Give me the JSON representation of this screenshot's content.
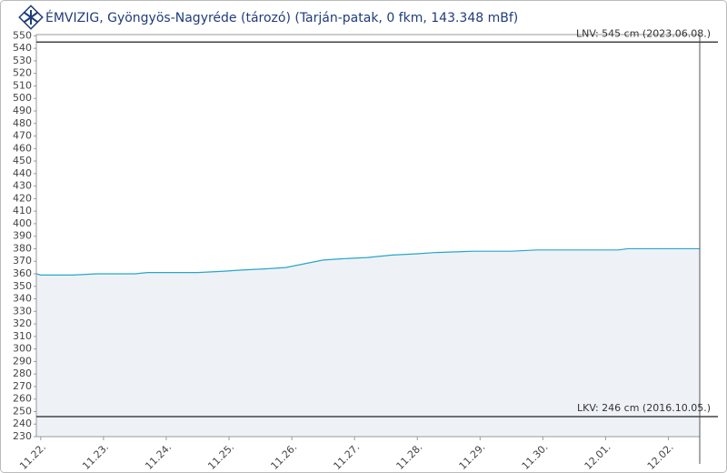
{
  "chart_data": {
    "type": "line",
    "title": "ÉMVIZIG, Gyöngyös-Nagyréde (tározó) (Tarján-patak, 0 fkm, 143.348 mBf)",
    "x": [
      -0.07,
      0,
      0.5,
      0.9,
      1.5,
      1.7,
      2.5,
      2.9,
      3.2,
      3.6,
      3.9,
      4.1,
      4.3,
      4.5,
      4.8,
      5.2,
      5.6,
      6.0,
      6.3,
      6.9,
      7.5,
      7.9,
      8.5,
      9.2,
      9.35,
      10.0,
      10.5
    ],
    "series": [
      {
        "color": "#29a6c9",
        "fill": "#eef2f7",
        "values": [
          360,
          359,
          359,
          360,
          360,
          361,
          361,
          362,
          363,
          364,
          365,
          367,
          369,
          371,
          372,
          373,
          375,
          376,
          377,
          378,
          378,
          379,
          379,
          379,
          380,
          380,
          380
        ]
      }
    ],
    "xlim": [
      -0.07,
      10.5
    ],
    "xticks": [
      {
        "value": 0,
        "label": "11.22."
      },
      {
        "value": 1,
        "label": "11.23."
      },
      {
        "value": 2,
        "label": "11.24."
      },
      {
        "value": 3,
        "label": "11.25."
      },
      {
        "value": 4,
        "label": "11.26."
      },
      {
        "value": 5,
        "label": "11.27."
      },
      {
        "value": 6,
        "label": "11.28."
      },
      {
        "value": 7,
        "label": "11.29."
      },
      {
        "value": 8,
        "label": "11.30."
      },
      {
        "value": 9,
        "label": "12.01."
      },
      {
        "value": 10,
        "label": "12.02."
      }
    ],
    "ylim": [
      230,
      551
    ],
    "yticks": [
      230,
      240,
      250,
      260,
      270,
      280,
      290,
      300,
      310,
      320,
      330,
      340,
      350,
      360,
      370,
      380,
      390,
      400,
      410,
      420,
      430,
      440,
      450,
      460,
      470,
      480,
      490,
      500,
      510,
      520,
      530,
      540,
      550
    ],
    "ref_lines": [
      {
        "value": 545,
        "label": "LNV: 545 cm (2023.06.08.)"
      },
      {
        "value": 246,
        "label": "LKV: 246 cm (2016.10.05.)"
      }
    ]
  }
}
